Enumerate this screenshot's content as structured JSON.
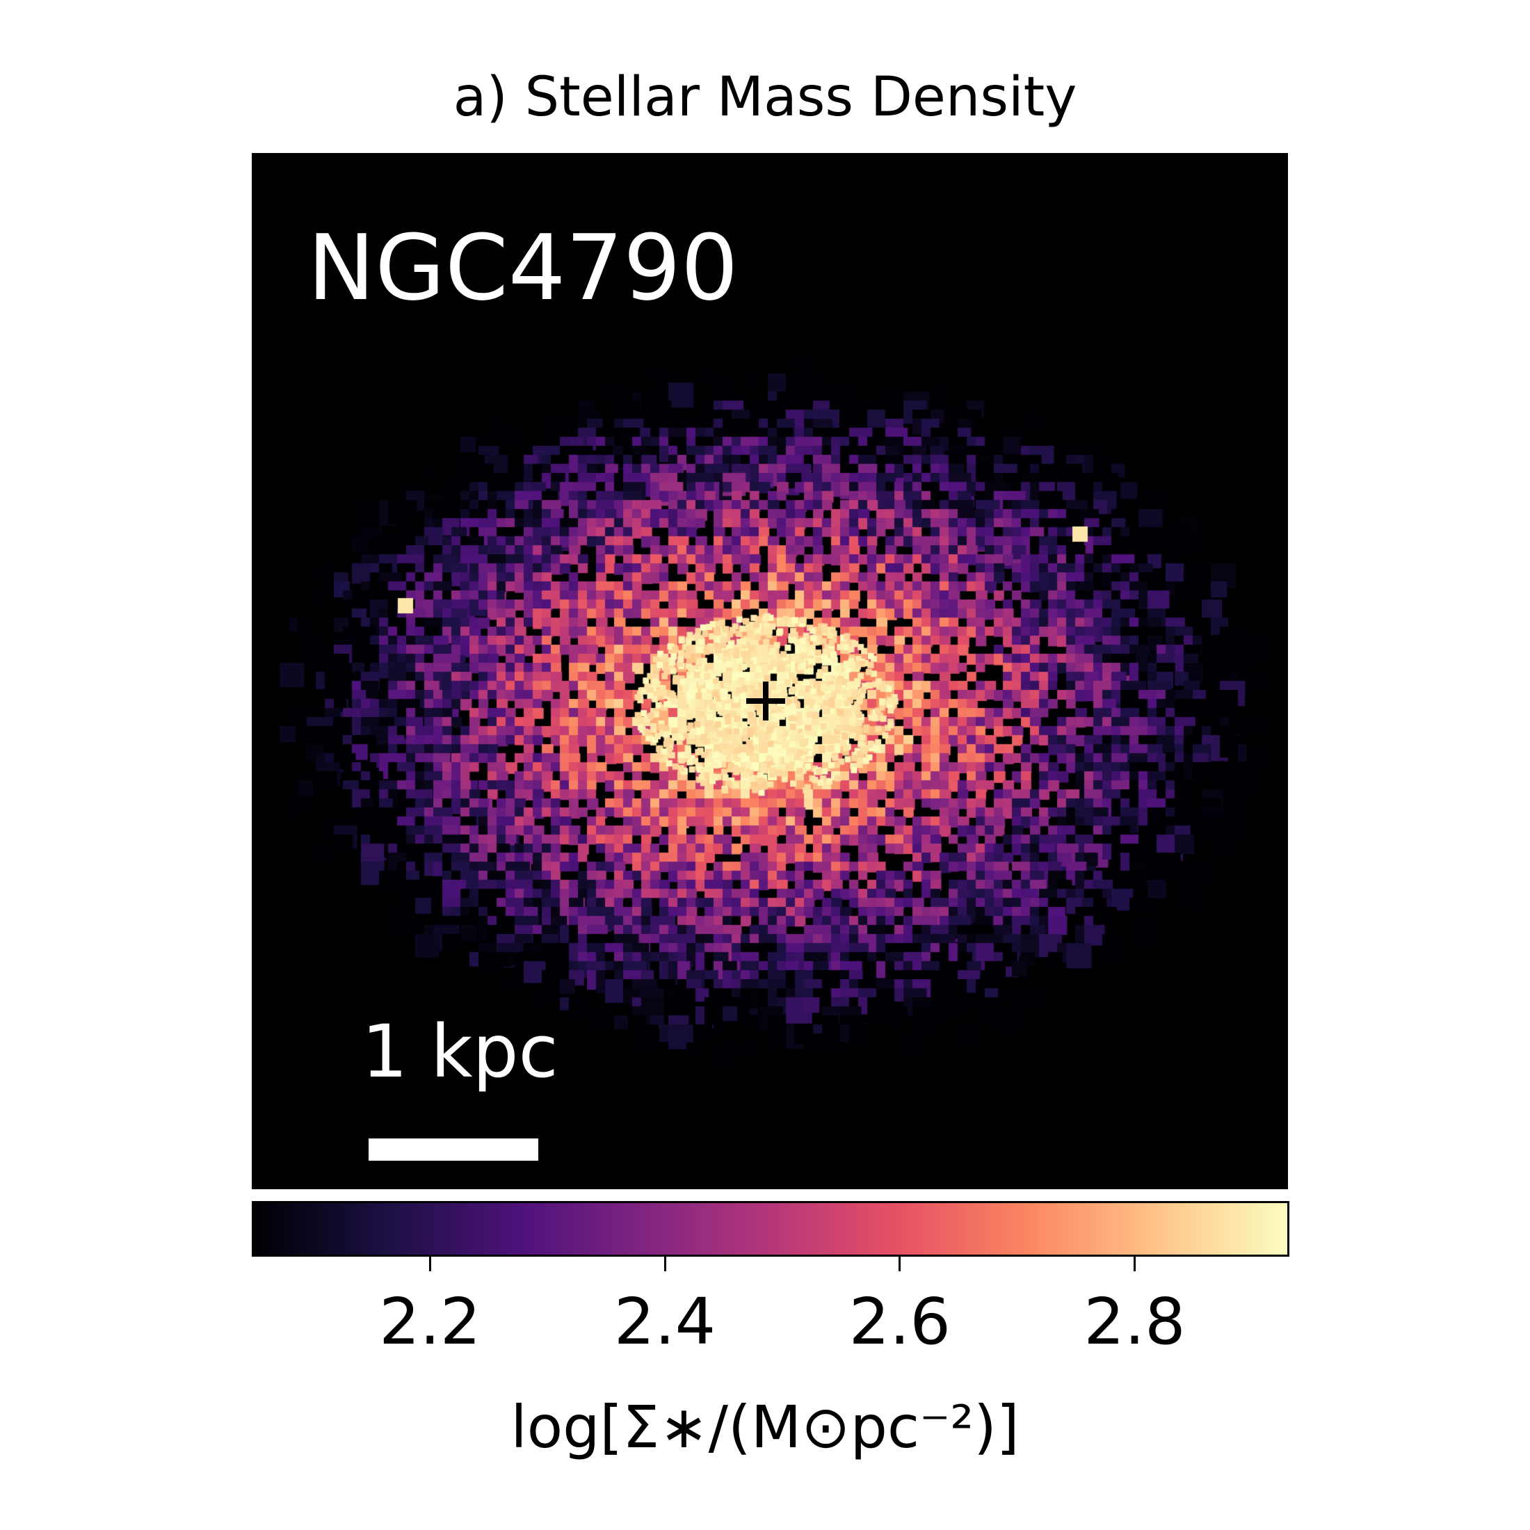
{
  "title": "a) Stellar Mass Density",
  "chart_data": {
    "type": "heatmap",
    "title": "a) Stellar Mass Density",
    "object": "NGC4790",
    "scale_bar_label": "1 kpc",
    "center_marker": "+",
    "colormap": "magma",
    "colorbar": {
      "label": "log[Σ∗/(M⊙pc⁻²)]",
      "range": [
        2.05,
        2.93
      ],
      "ticks": [
        2.2,
        2.4,
        2.6,
        2.8
      ],
      "tick_labels": [
        "2.2",
        "2.4",
        "2.6",
        "2.8"
      ],
      "placement": "bottom"
    },
    "background": "#000000"
  }
}
